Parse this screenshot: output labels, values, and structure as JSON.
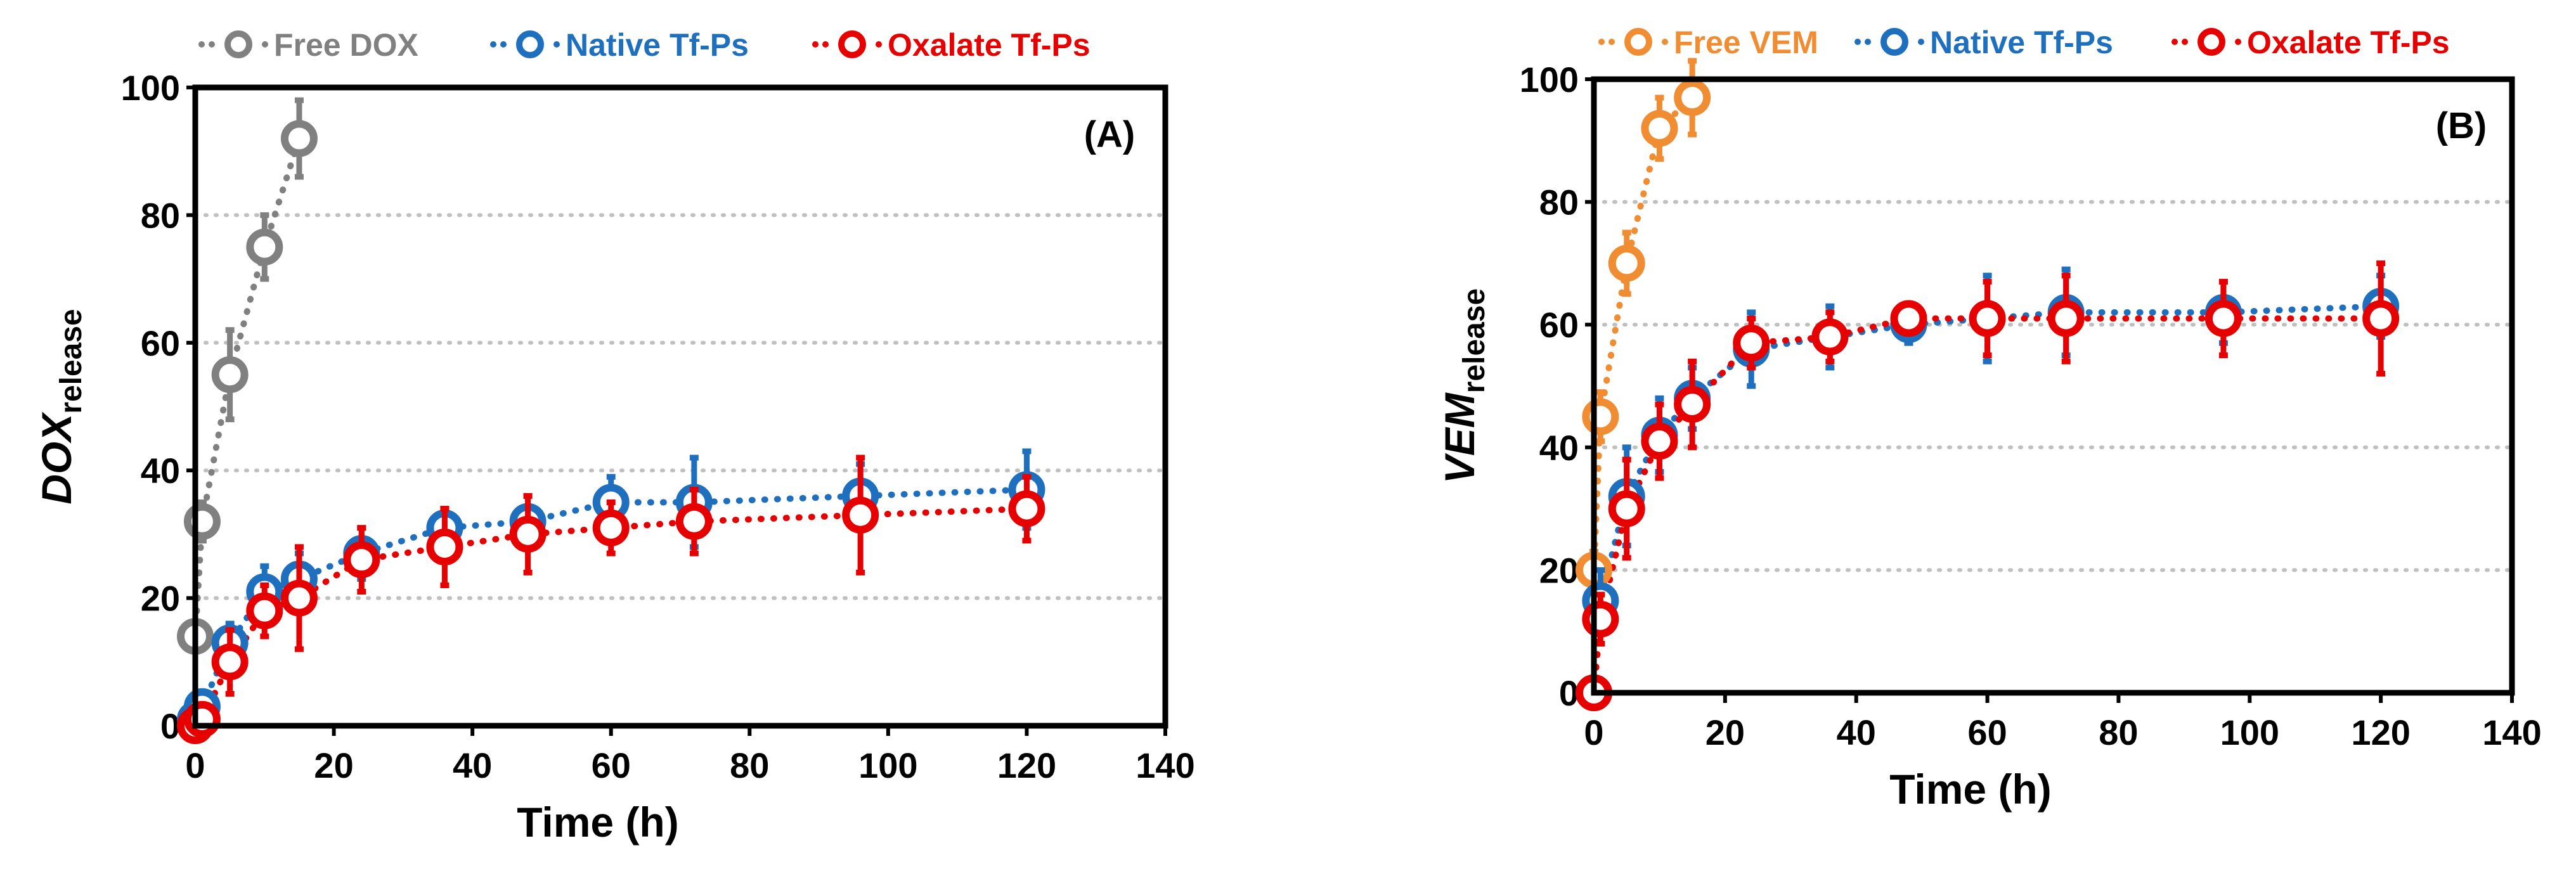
{
  "chart_data": [
    {
      "type": "scatter",
      "panel_label": "(A)",
      "xlabel": "Time (h)",
      "ylabel_main": "DOX",
      "ylabel_sub": "release",
      "xlim": [
        0,
        140
      ],
      "ylim": [
        0,
        100
      ],
      "xticks": [
        0,
        20,
        40,
        60,
        80,
        100,
        120,
        140
      ],
      "yticks": [
        0,
        20,
        40,
        60,
        80,
        100
      ],
      "x_tick_labels": [
        "0",
        "20",
        "40",
        "60",
        "80",
        "100",
        "120",
        "140"
      ],
      "y_tick_labels": [
        "0",
        "20",
        "40",
        "60",
        "80",
        "100"
      ],
      "grid": "horizontal dotted",
      "legend_position": "top",
      "series": [
        {
          "name": "Free DOX",
          "color": "#808080",
          "x": [
            0,
            1,
            5,
            10,
            15
          ],
          "y": [
            14,
            32,
            55,
            75,
            92
          ],
          "err": [
            2,
            3,
            7,
            5,
            6
          ]
        },
        {
          "name": "Native Tf-Ps",
          "color": "#1F6FBF",
          "x": [
            0,
            1,
            5,
            10,
            15,
            24,
            36,
            48,
            60,
            72,
            96,
            120
          ],
          "y": [
            1,
            3,
            13,
            21,
            23,
            27,
            31,
            32,
            35,
            35,
            36,
            37
          ],
          "err": [
            1,
            2,
            3,
            4,
            4,
            4,
            3,
            4,
            4,
            7,
            5,
            6
          ]
        },
        {
          "name": "Oxalate Tf-Ps",
          "color": "#E60000",
          "x": [
            0,
            1,
            5,
            10,
            15,
            24,
            36,
            48,
            60,
            72,
            96,
            120
          ],
          "y": [
            0,
            1,
            10,
            18,
            20,
            26,
            28,
            30,
            31,
            32,
            33,
            34
          ],
          "err": [
            1,
            1,
            5,
            4,
            8,
            5,
            6,
            6,
            4,
            5,
            9,
            5
          ]
        }
      ]
    },
    {
      "type": "scatter",
      "panel_label": "(B)",
      "xlabel": "Time (h)",
      "ylabel_main": "VEM",
      "ylabel_sub": "release",
      "xlim": [
        0,
        140
      ],
      "ylim": [
        0,
        100
      ],
      "xticks": [
        0,
        20,
        40,
        60,
        80,
        100,
        120,
        140
      ],
      "yticks": [
        0,
        20,
        40,
        60,
        80,
        100
      ],
      "x_tick_labels": [
        "0",
        "20",
        "40",
        "60",
        "80",
        "100",
        "120",
        "140"
      ],
      "y_tick_labels": [
        "0",
        "20",
        "40",
        "60",
        "80",
        "100"
      ],
      "grid": "horizontal dotted",
      "legend_position": "top",
      "series": [
        {
          "name": "Free VEM",
          "color": "#F08C32",
          "x": [
            0,
            1,
            5,
            10,
            15
          ],
          "y": [
            20,
            45,
            70,
            92,
            97
          ],
          "err": [
            3,
            4,
            5,
            5,
            6
          ]
        },
        {
          "name": "Native Tf-Ps",
          "color": "#1F6FBF",
          "x": [
            0,
            1,
            5,
            10,
            15,
            24,
            36,
            48,
            60,
            72,
            96,
            120
          ],
          "y": [
            0,
            15,
            32,
            42,
            48,
            56,
            58,
            60,
            61,
            62,
            62,
            63
          ],
          "err": [
            1,
            5,
            8,
            6,
            5,
            6,
            5,
            3,
            7,
            7,
            5,
            5
          ]
        },
        {
          "name": "Oxalate Tf-Ps",
          "color": "#E60000",
          "x": [
            0,
            1,
            5,
            10,
            15,
            24,
            36,
            48,
            60,
            72,
            96,
            120
          ],
          "y": [
            0,
            12,
            30,
            41,
            47,
            57,
            58,
            61,
            61,
            61,
            61,
            61
          ],
          "err": [
            1,
            4,
            8,
            6,
            7,
            4,
            4,
            2,
            6,
            7,
            6,
            9
          ]
        }
      ]
    }
  ]
}
